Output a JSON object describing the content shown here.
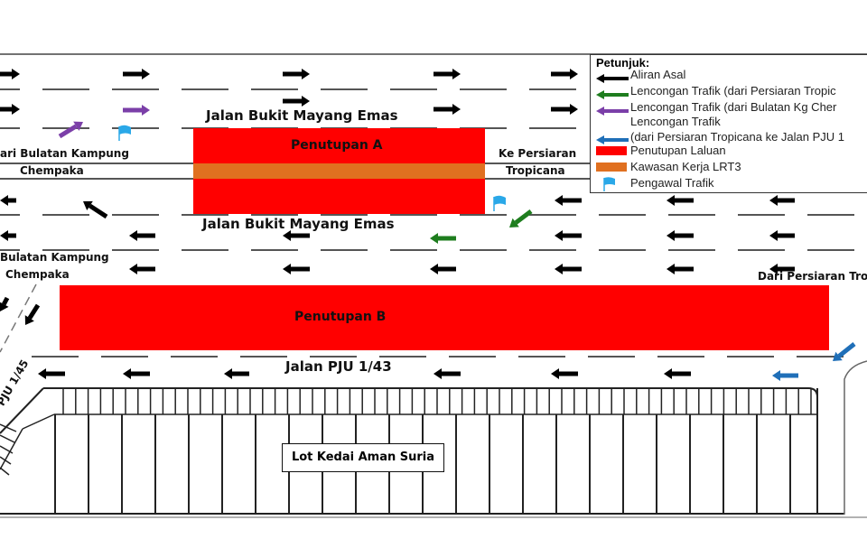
{
  "labels": {
    "road_top": "Jalan Bukit Mayang Emas",
    "road_mid": "Jalan Bukit Mayang Emas",
    "road_bottom": "Jalan PJU 1/43",
    "road_side": "PJU 1/45",
    "closure_a": "Penutupan A",
    "closure_b": "Penutupan B",
    "from_kg_chempaka_top_1": "ari Bulatan Kampung",
    "from_kg_chempaka_top_2": "Chempaka",
    "to_kg_chempaka_1": "Bulatan Kampung",
    "to_kg_chempaka_2": "Chempaka",
    "to_tropicana_1": "Ke Persiaran",
    "to_tropicana_2": "Tropicana",
    "from_tropicana": "Dari Persiaran Trop",
    "shop_lot": "Lot Kedai Aman Suria"
  },
  "legend": {
    "title": "Petunjuk:",
    "items": [
      {
        "label": "Aliran Asal",
        "symbol": "arrow",
        "color": "#000000"
      },
      {
        "label": "Lencongan Trafik (dari Persiaran Tropic",
        "symbol": "arrow",
        "color": "#1e7d1e"
      },
      {
        "label": "Lencongan Trafik (dari Bulatan Kg Cher",
        "symbol": "arrow",
        "color": "#7b3fa8"
      },
      {
        "label": "Lencongan Trafik",
        "label2": "(dari Persiaran Tropicana ke Jalan PJU 1",
        "symbol": "arrow",
        "color": "#1f6fb8"
      },
      {
        "label": "Penutupan Laluan",
        "symbol": "box",
        "color": "#ff0000"
      },
      {
        "label": "Kawasan Kerja LRT3",
        "symbol": "box",
        "color": "#e07020"
      },
      {
        "label": "Pengawal Trafik",
        "symbol": "flag",
        "color": "#2aa8e8"
      }
    ]
  },
  "colors": {
    "original": "#000000",
    "detour_green": "#1e7d1e",
    "detour_purple": "#7b3fa8",
    "detour_blue": "#1f6fb8",
    "closure": "#ff0000",
    "lrt_work": "#e07020",
    "flag": "#2aa8e8"
  }
}
